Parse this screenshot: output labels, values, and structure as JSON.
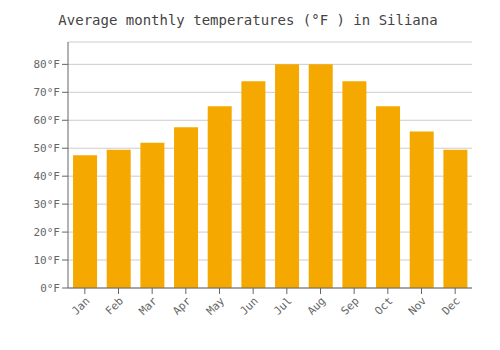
{
  "chart_data": {
    "type": "bar",
    "title": "Average monthly temperatures (°F ) in Siliana",
    "categories": [
      "Jan",
      "Feb",
      "Mar",
      "Apr",
      "May",
      "Jun",
      "Jul",
      "Aug",
      "Sep",
      "Oct",
      "Nov",
      "Dec"
    ],
    "values": [
      47.5,
      49.5,
      52,
      57.5,
      65,
      74,
      80,
      80,
      74,
      65,
      56,
      49.5
    ],
    "color": "#F5A800",
    "ylim": [
      0,
      88
    ],
    "yticks": [
      {
        "value": 0,
        "label": "0°F"
      },
      {
        "value": 10,
        "label": "10°F"
      },
      {
        "value": 20,
        "label": "20°F"
      },
      {
        "value": 30,
        "label": "30°F"
      },
      {
        "value": 40,
        "label": "40°F"
      },
      {
        "value": 50,
        "label": "50°F"
      },
      {
        "value": 60,
        "label": "60°F"
      },
      {
        "value": 70,
        "label": "70°F"
      },
      {
        "value": 80,
        "label": "80°F"
      }
    ],
    "grid": true
  }
}
